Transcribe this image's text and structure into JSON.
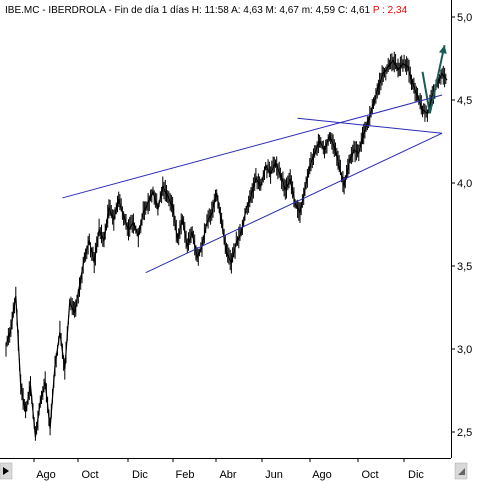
{
  "header": {
    "ticker": "IBE.MC",
    "name": "IBERDROLA",
    "period": "Fin de día 1 días",
    "h": "H: 11:58",
    "a": "A: 4,63",
    "m_high": "M: 4,67",
    "m_low": "m: 4,59",
    "c": "C: 4,61",
    "pct": "P : 2,34"
  },
  "chart_data": {
    "type": "line",
    "ylim": [
      2.35,
      5.0
    ],
    "ylabels": [
      "5,0",
      "4,5",
      "4,0",
      "3,5",
      "3,0",
      "2,5"
    ],
    "yvalues": [
      5.0,
      4.5,
      4.0,
      3.5,
      3.0,
      2.5
    ],
    "xlabels": [
      "Ago",
      "Oct",
      "Dic",
      "Feb",
      "Abr",
      "Jun",
      "Ago",
      "Oct",
      "Dic"
    ],
    "x_start": "2008-06",
    "x_end": "2010-01",
    "prices": [
      [
        0,
        3.02
      ],
      [
        2,
        3.12
      ],
      [
        4,
        3.32
      ],
      [
        6,
        2.78
      ],
      [
        8,
        2.62
      ],
      [
        10,
        2.78
      ],
      [
        12,
        2.47
      ],
      [
        14,
        2.68
      ],
      [
        16,
        2.8
      ],
      [
        18,
        2.52
      ],
      [
        20,
        2.9
      ],
      [
        22,
        3.1
      ],
      [
        24,
        2.88
      ],
      [
        26,
        3.28
      ],
      [
        28,
        3.22
      ],
      [
        30,
        3.38
      ],
      [
        32,
        3.55
      ],
      [
        34,
        3.65
      ],
      [
        36,
        3.52
      ],
      [
        38,
        3.72
      ],
      [
        40,
        3.65
      ],
      [
        42,
        3.85
      ],
      [
        44,
        3.78
      ],
      [
        46,
        3.9
      ],
      [
        48,
        3.8
      ],
      [
        50,
        3.72
      ],
      [
        52,
        3.76
      ],
      [
        54,
        3.68
      ],
      [
        56,
        3.82
      ],
      [
        58,
        3.88
      ],
      [
        60,
        3.95
      ],
      [
        62,
        3.84
      ],
      [
        64,
        3.98
      ],
      [
        66,
        3.92
      ],
      [
        68,
        3.86
      ],
      [
        70,
        3.66
      ],
      [
        72,
        3.78
      ],
      [
        74,
        3.62
      ],
      [
        76,
        3.7
      ],
      [
        78,
        3.55
      ],
      [
        80,
        3.62
      ],
      [
        82,
        3.76
      ],
      [
        84,
        3.82
      ],
      [
        86,
        3.94
      ],
      [
        88,
        3.76
      ],
      [
        90,
        3.58
      ],
      [
        92,
        3.52
      ],
      [
        94,
        3.64
      ],
      [
        96,
        3.7
      ],
      [
        98,
        3.84
      ],
      [
        100,
        3.92
      ],
      [
        102,
        4.03
      ],
      [
        104,
        3.98
      ],
      [
        106,
        4.1
      ],
      [
        108,
        4.06
      ],
      [
        110,
        4.12
      ],
      [
        112,
        4.05
      ],
      [
        114,
        3.96
      ],
      [
        116,
        4.02
      ],
      [
        118,
        3.88
      ],
      [
        120,
        3.82
      ],
      [
        122,
        3.96
      ],
      [
        124,
        4.1
      ],
      [
        126,
        4.18
      ],
      [
        128,
        4.25
      ],
      [
        130,
        4.2
      ],
      [
        132,
        4.28
      ],
      [
        134,
        4.22
      ],
      [
        136,
        4.1
      ],
      [
        138,
        3.98
      ],
      [
        140,
        4.12
      ],
      [
        142,
        4.2
      ],
      [
        144,
        4.18
      ],
      [
        146,
        4.3
      ],
      [
        148,
        4.38
      ],
      [
        150,
        4.48
      ],
      [
        152,
        4.58
      ],
      [
        154,
        4.66
      ],
      [
        156,
        4.7
      ],
      [
        158,
        4.74
      ],
      [
        160,
        4.68
      ],
      [
        162,
        4.72
      ],
      [
        164,
        4.7
      ],
      [
        166,
        4.6
      ],
      [
        168,
        4.52
      ],
      [
        170,
        4.44
      ],
      [
        172,
        4.42
      ],
      [
        174,
        4.52
      ],
      [
        176,
        4.6
      ],
      [
        178,
        4.66
      ],
      [
        180,
        4.62
      ]
    ],
    "x_span": 180,
    "trendlines": [
      {
        "from": [
          23,
          3.91
        ],
        "to": [
          178,
          4.53
        ],
        "color": "#2b2bb8"
      },
      {
        "from": [
          57,
          3.46
        ],
        "to": [
          178,
          4.3
        ],
        "color": "#2b2bb8"
      },
      {
        "from": [
          119,
          4.39
        ],
        "to": [
          178,
          4.3
        ],
        "color": "#2b2bb8"
      }
    ],
    "forecast_arrow": {
      "points": [
        [
          170,
          4.67
        ],
        [
          173,
          4.42
        ],
        [
          179,
          4.83
        ]
      ],
      "color": "#1a5c55"
    }
  }
}
